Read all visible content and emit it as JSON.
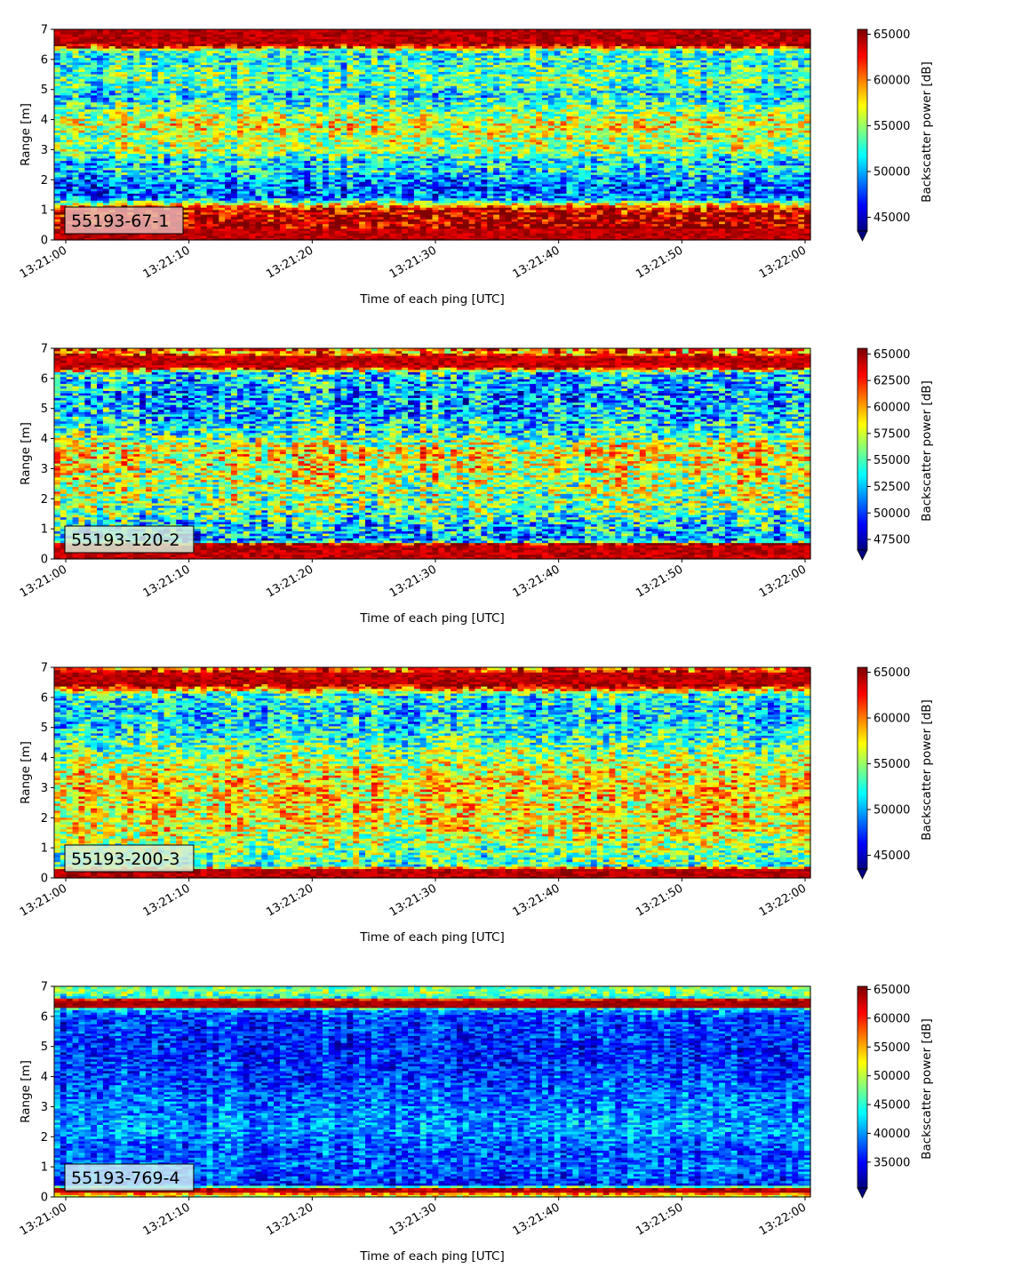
{
  "chart_data": [
    {
      "type": "heatmap",
      "label": "55193-67-1",
      "label_box_color": "#e8b4b4",
      "x": {
        "label": "Time of each ping [UTC]",
        "ticks": [
          "13:21:00",
          "13:21:10",
          "13:21:20",
          "13:21:30",
          "13:21:40",
          "13:21:50",
          "13:22:00"
        ],
        "range": [
          "13:21:00",
          "13:22:00"
        ]
      },
      "y": {
        "label": "Range [m]",
        "ticks": [
          0,
          1,
          2,
          3,
          4,
          5,
          6,
          7
        ],
        "range": [
          0,
          7
        ]
      },
      "colorbar": {
        "label": "Backscatter power [dB]",
        "colormap": "jet",
        "ticks": [
          45000,
          50000,
          55000,
          60000,
          65000
        ],
        "range": [
          43500,
          65535
        ],
        "extend": "min"
      },
      "profile": [
        {
          "range": 0.0,
          "value": 65535
        },
        {
          "range": 0.25,
          "value": 65535
        },
        {
          "range": 1.05,
          "value": 63000
        },
        {
          "range": 1.15,
          "value": 59000
        },
        {
          "range": 1.4,
          "value": 49000
        },
        {
          "range": 1.7,
          "value": 48500
        },
        {
          "range": 2.0,
          "value": 49000
        },
        {
          "range": 2.3,
          "value": 51500
        },
        {
          "range": 2.6,
          "value": 51000
        },
        {
          "range": 3.0,
          "value": 55500
        },
        {
          "range": 3.5,
          "value": 55500
        },
        {
          "range": 3.8,
          "value": 57500
        },
        {
          "range": 4.2,
          "value": 55000
        },
        {
          "range": 4.8,
          "value": 51500
        },
        {
          "range": 5.3,
          "value": 54000
        },
        {
          "range": 5.9,
          "value": 52500
        },
        {
          "range": 6.3,
          "value": 53000
        },
        {
          "range": 6.45,
          "value": 64000
        },
        {
          "range": 6.55,
          "value": 65535
        },
        {
          "range": 7.0,
          "value": 65535
        }
      ]
    },
    {
      "type": "heatmap",
      "label": "55193-120-2",
      "label_box_color": "#d8ecd8",
      "x": {
        "label": "Time of each ping [UTC]",
        "ticks": [
          "13:21:00",
          "13:21:10",
          "13:21:20",
          "13:21:30",
          "13:21:40",
          "13:21:50",
          "13:22:00"
        ],
        "range": [
          "13:21:00",
          "13:22:00"
        ]
      },
      "y": {
        "label": "Range [m]",
        "ticks": [
          0,
          1,
          2,
          3,
          4,
          5,
          6,
          7
        ],
        "range": [
          0,
          7
        ]
      },
      "colorbar": {
        "label": "Backscatter power [dB]",
        "colormap": "jet",
        "ticks": [
          47500,
          50000,
          52500,
          55000,
          57500,
          60000,
          62500,
          65000
        ],
        "range": [
          46500,
          65535
        ],
        "extend": "min"
      },
      "profile": [
        {
          "range": 0.0,
          "value": 65535
        },
        {
          "range": 0.5,
          "value": 65535
        },
        {
          "range": 0.6,
          "value": 52000
        },
        {
          "range": 1.2,
          "value": 53500
        },
        {
          "range": 1.8,
          "value": 56000
        },
        {
          "range": 2.5,
          "value": 57000
        },
        {
          "range": 3.2,
          "value": 58000
        },
        {
          "range": 3.6,
          "value": 58500
        },
        {
          "range": 4.1,
          "value": 55000
        },
        {
          "range": 4.8,
          "value": 52500
        },
        {
          "range": 5.5,
          "value": 52000
        },
        {
          "range": 6.2,
          "value": 53500
        },
        {
          "range": 6.3,
          "value": 60000
        },
        {
          "range": 6.4,
          "value": 65535
        },
        {
          "range": 6.75,
          "value": 65535
        },
        {
          "range": 6.85,
          "value": 60000
        },
        {
          "range": 7.0,
          "value": 62000
        }
      ]
    },
    {
      "type": "heatmap",
      "label": "55193-200-3",
      "label_box_color": "#d8ecd8",
      "x": {
        "label": "Time of each ping [UTC]",
        "ticks": [
          "13:21:00",
          "13:21:10",
          "13:21:20",
          "13:21:30",
          "13:21:40",
          "13:21:50",
          "13:22:00"
        ],
        "range": [
          "13:21:00",
          "13:22:00"
        ]
      },
      "y": {
        "label": "Range [m]",
        "ticks": [
          0,
          1,
          2,
          3,
          4,
          5,
          6,
          7
        ],
        "range": [
          0,
          7
        ]
      },
      "colorbar": {
        "label": "Backscatter power [dB]",
        "colormap": "jet",
        "ticks": [
          45000,
          50000,
          55000,
          60000,
          65000
        ],
        "range": [
          43500,
          65535
        ],
        "extend": "min"
      },
      "profile": [
        {
          "range": 0.0,
          "value": 65535
        },
        {
          "range": 0.3,
          "value": 65535
        },
        {
          "range": 0.4,
          "value": 53000
        },
        {
          "range": 1.0,
          "value": 54500
        },
        {
          "range": 1.6,
          "value": 57000
        },
        {
          "range": 2.4,
          "value": 57500
        },
        {
          "range": 3.0,
          "value": 58000
        },
        {
          "range": 3.6,
          "value": 56500
        },
        {
          "range": 4.2,
          "value": 54500
        },
        {
          "range": 5.0,
          "value": 51500
        },
        {
          "range": 5.6,
          "value": 51000
        },
        {
          "range": 6.1,
          "value": 52500
        },
        {
          "range": 6.3,
          "value": 60000
        },
        {
          "range": 6.45,
          "value": 65535
        },
        {
          "range": 6.8,
          "value": 65535
        },
        {
          "range": 6.9,
          "value": 62000
        },
        {
          "range": 7.0,
          "value": 60000
        }
      ]
    },
    {
      "type": "heatmap",
      "label": "55193-769-4",
      "label_box_color": "#cfeef2",
      "x": {
        "label": "Time of each ping [UTC]",
        "ticks": [
          "13:21:00",
          "13:21:10",
          "13:21:20",
          "13:21:30",
          "13:21:40",
          "13:21:50",
          "13:22:00"
        ],
        "range": [
          "13:21:00",
          "13:22:00"
        ]
      },
      "y": {
        "label": "Range [m]",
        "ticks": [
          0,
          1,
          2,
          3,
          4,
          5,
          6,
          7
        ],
        "range": [
          0,
          7
        ]
      },
      "colorbar": {
        "label": "Backscatter power [dB]",
        "colormap": "jet",
        "ticks": [
          35000,
          40000,
          45000,
          50000,
          55000,
          60000,
          65000
        ],
        "range": [
          30500,
          65535
        ],
        "extend": "min"
      },
      "profile": [
        {
          "range": 0.0,
          "value": 52000
        },
        {
          "range": 0.1,
          "value": 52000
        },
        {
          "range": 0.15,
          "value": 65535
        },
        {
          "range": 0.3,
          "value": 64000
        },
        {
          "range": 0.38,
          "value": 36000
        },
        {
          "range": 1.0,
          "value": 38500
        },
        {
          "range": 1.6,
          "value": 37500
        },
        {
          "range": 2.2,
          "value": 40500
        },
        {
          "range": 3.0,
          "value": 39000
        },
        {
          "range": 4.0,
          "value": 37000
        },
        {
          "range": 5.0,
          "value": 36000
        },
        {
          "range": 6.0,
          "value": 37000
        },
        {
          "range": 6.25,
          "value": 40000
        },
        {
          "range": 6.32,
          "value": 65535
        },
        {
          "range": 6.55,
          "value": 65535
        },
        {
          "range": 6.65,
          "value": 44000
        },
        {
          "range": 6.8,
          "value": 48000
        },
        {
          "range": 7.0,
          "value": 47000
        }
      ]
    }
  ]
}
